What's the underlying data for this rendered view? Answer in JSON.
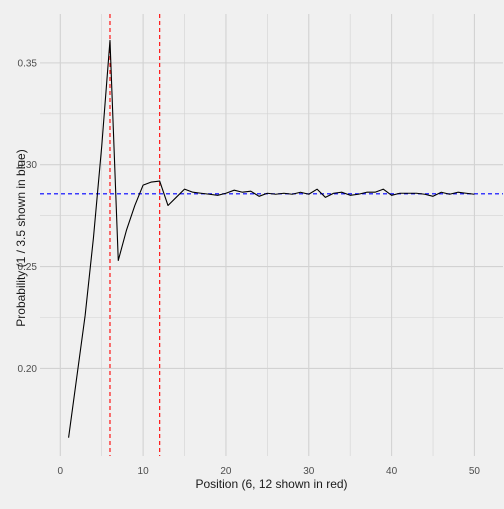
{
  "chart_data": {
    "type": "line",
    "title": "",
    "xlabel": "Position (6, 12 shown in red)",
    "ylabel": "Probability (1 / 3.5 shown in blue)",
    "xlim": [
      -2.45,
      53.45
    ],
    "ylim": [
      0.157,
      0.374
    ],
    "x_ticks": [
      0,
      10,
      20,
      30,
      40,
      50
    ],
    "y_ticks": [
      0.2,
      0.25,
      0.3,
      0.35
    ],
    "x_tick_labels": [
      "0",
      "10",
      "20",
      "30",
      "40",
      "50"
    ],
    "y_tick_labels": [
      "0.20",
      "0.25",
      "0.30",
      "0.35"
    ],
    "grid": true,
    "background": "#f0f0f0",
    "grid_color": "#d2d2d2",
    "line_color": "#000000",
    "vline_color": "#ff0000",
    "hline_color": "#0000ff",
    "reference_vlines": [
      6,
      12
    ],
    "reference_hline": 0.2857,
    "series": [
      {
        "x": [
          1,
          2,
          3,
          4,
          5,
          6,
          7,
          8,
          9,
          10,
          11,
          12,
          13,
          14,
          15,
          16,
          17,
          18,
          19,
          20,
          21,
          22,
          23,
          24,
          25,
          26,
          27,
          28,
          29,
          30,
          31,
          32,
          33,
          34,
          35,
          36,
          37,
          38,
          39,
          40,
          41,
          42,
          43,
          44,
          45,
          46,
          47,
          48,
          49,
          50
        ],
        "values": [
          0.166,
          0.196,
          0.226,
          0.264,
          0.309,
          0.361,
          0.253,
          0.268,
          0.28,
          0.29,
          0.2915,
          0.292,
          0.28,
          0.284,
          0.288,
          0.2865,
          0.286,
          0.2855,
          0.285,
          0.286,
          0.2875,
          0.2865,
          0.287,
          0.2845,
          0.286,
          0.2855,
          0.286,
          0.2855,
          0.2865,
          0.2855,
          0.288,
          0.284,
          0.286,
          0.2865,
          0.285,
          0.2855,
          0.2865,
          0.2865,
          0.288,
          0.285,
          0.286,
          0.286,
          0.286,
          0.2855,
          0.2845,
          0.2865,
          0.2855,
          0.2865,
          0.286,
          0.2855
        ]
      }
    ]
  }
}
